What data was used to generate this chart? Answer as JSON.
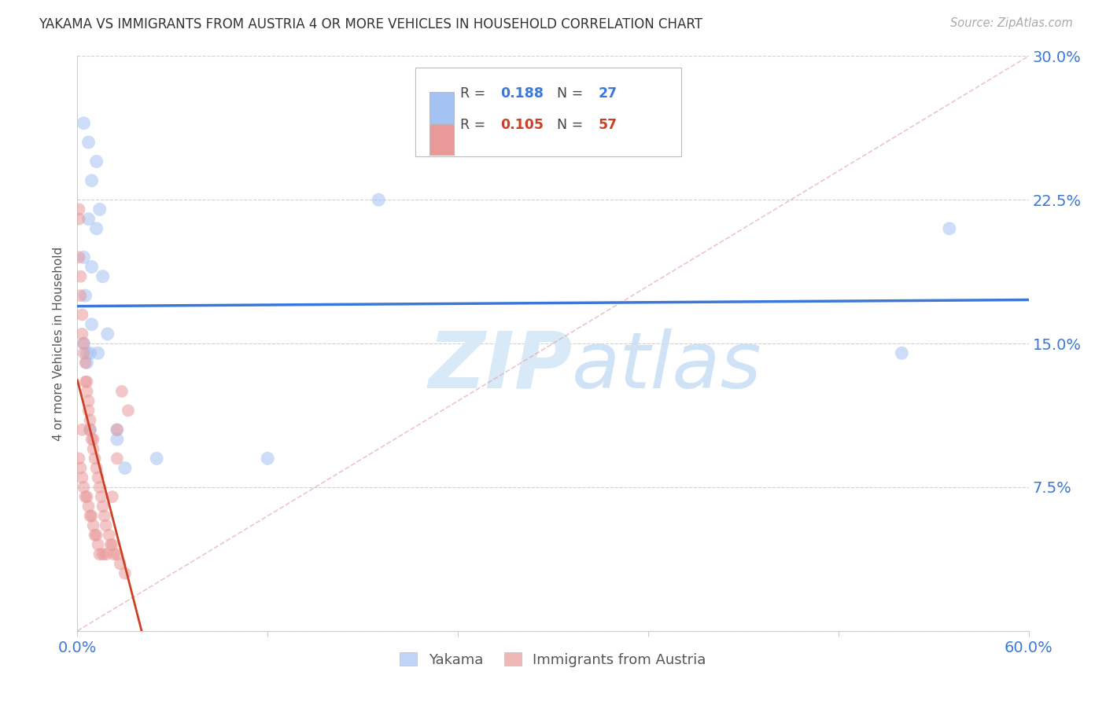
{
  "title": "YAKAMA VS IMMIGRANTS FROM AUSTRIA 4 OR MORE VEHICLES IN HOUSEHOLD CORRELATION CHART",
  "source": "Source: ZipAtlas.com",
  "ylabel": "4 or more Vehicles in Household",
  "xlim": [
    0.0,
    0.6
  ],
  "ylim": [
    0.0,
    0.3
  ],
  "xticks": [
    0.0,
    0.12,
    0.24,
    0.36,
    0.48,
    0.6
  ],
  "xticklabels": [
    "0.0%",
    "",
    "",
    "",
    "",
    "60.0%"
  ],
  "yticks": [
    0.0,
    0.075,
    0.15,
    0.225,
    0.3
  ],
  "yticklabels_right": [
    "",
    "7.5%",
    "15.0%",
    "22.5%",
    "30.0%"
  ],
  "yakama_color": "#a4c2f4",
  "austria_color": "#ea9999",
  "trend_yakama_color": "#3c78d8",
  "trend_austria_color": "#cc4125",
  "diagonal_color": "#cccccc",
  "background_color": "#ffffff",
  "yakama_x": [
    0.004,
    0.007,
    0.009,
    0.012,
    0.007,
    0.012,
    0.014,
    0.004,
    0.009,
    0.016,
    0.005,
    0.009,
    0.004,
    0.008,
    0.019,
    0.006,
    0.013,
    0.008,
    0.025,
    0.19,
    0.52,
    0.55,
    0.05,
    0.12,
    0.03,
    0.025,
    0.006
  ],
  "yakama_y": [
    0.265,
    0.255,
    0.235,
    0.245,
    0.215,
    0.21,
    0.22,
    0.195,
    0.19,
    0.185,
    0.175,
    0.16,
    0.15,
    0.145,
    0.155,
    0.14,
    0.145,
    0.105,
    0.1,
    0.225,
    0.145,
    0.21,
    0.09,
    0.09,
    0.085,
    0.105,
    0.145
  ],
  "austria_x": [
    0.001,
    0.001,
    0.002,
    0.002,
    0.003,
    0.003,
    0.004,
    0.004,
    0.005,
    0.005,
    0.006,
    0.006,
    0.007,
    0.007,
    0.008,
    0.008,
    0.009,
    0.01,
    0.01,
    0.011,
    0.012,
    0.013,
    0.014,
    0.015,
    0.016,
    0.017,
    0.018,
    0.02,
    0.021,
    0.022,
    0.023,
    0.025,
    0.027,
    0.03,
    0.001,
    0.002,
    0.003,
    0.004,
    0.005,
    0.006,
    0.007,
    0.008,
    0.009,
    0.01,
    0.011,
    0.012,
    0.013,
    0.014,
    0.016,
    0.018,
    0.022,
    0.025,
    0.028,
    0.001,
    0.003,
    0.025,
    0.032
  ],
  "austria_y": [
    0.215,
    0.195,
    0.185,
    0.175,
    0.165,
    0.155,
    0.15,
    0.145,
    0.14,
    0.13,
    0.13,
    0.125,
    0.12,
    0.115,
    0.11,
    0.105,
    0.1,
    0.1,
    0.095,
    0.09,
    0.085,
    0.08,
    0.075,
    0.07,
    0.065,
    0.06,
    0.055,
    0.05,
    0.045,
    0.045,
    0.04,
    0.04,
    0.035,
    0.03,
    0.09,
    0.085,
    0.08,
    0.075,
    0.07,
    0.07,
    0.065,
    0.06,
    0.06,
    0.055,
    0.05,
    0.05,
    0.045,
    0.04,
    0.04,
    0.04,
    0.07,
    0.09,
    0.125,
    0.22,
    0.105,
    0.105,
    0.115
  ]
}
